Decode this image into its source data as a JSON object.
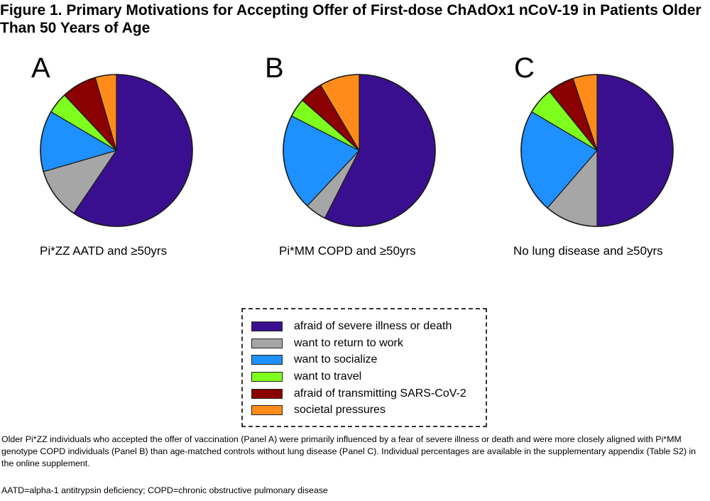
{
  "figure": {
    "title": "Figure 1. Primary Motivations for Accepting Offer of First-dose ChAdOx1 nCoV-19 in Patients Older Than 50 Years of Age",
    "caption": "Older Pi*ZZ individuals who accepted the offer of vaccination (Panel A) were primarily influenced by a fear of severe illness or death and were more closely aligned with Pi*MM genotype COPD individuals (Panel B) than age-matched controls without lung disease (Panel C). Individual percentages are available in the supplementary appendix (Table S2) in the online supplement.",
    "footnote": "AATD=alpha-1 antitrypsin deficiency; COPD=chronic obstructive pulmonary disease"
  },
  "legend": {
    "items": [
      {
        "label": "afraid of severe illness or death",
        "color": "#3a0f8f"
      },
      {
        "label": "want to return to work",
        "color": "#a6a6a6"
      },
      {
        "label": "want to socialize",
        "color": "#1e90ff"
      },
      {
        "label": "want to travel",
        "color": "#7fff1e"
      },
      {
        "label": "afraid of transmitting SARS-CoV-2",
        "color": "#8b0000"
      },
      {
        "label": "societal pressures",
        "color": "#ff8c1a"
      }
    ]
  },
  "chart_data": [
    {
      "type": "pie",
      "panel": "A",
      "title": "Pi*ZZ AATD and ≥50yrs",
      "categories": [
        "afraid of severe illness or death",
        "want to return to work",
        "want to socialize",
        "want to travel",
        "afraid of transmitting SARS-CoV-2",
        "societal pressures"
      ],
      "values": [
        59.5,
        11,
        13,
        4.5,
        7.5,
        4.5
      ]
    },
    {
      "type": "pie",
      "panel": "B",
      "title": "Pi*MM COPD and ≥50yrs",
      "categories": [
        "afraid of severe illness or death",
        "want to return to work",
        "want to socialize",
        "want to travel",
        "afraid of transmitting SARS-CoV-2",
        "societal pressures"
      ],
      "values": [
        57.5,
        4.5,
        20.5,
        4,
        5,
        8.5
      ]
    },
    {
      "type": "pie",
      "panel": "C",
      "title": "No lung disease and ≥50yrs",
      "categories": [
        "afraid of severe illness or death",
        "want to return to work",
        "want to socialize",
        "want to travel",
        "afraid of transmitting SARS-CoV-2",
        "societal pressures"
      ],
      "values": [
        48.5,
        11,
        21.5,
        5.5,
        5.5,
        5
      ]
    }
  ]
}
